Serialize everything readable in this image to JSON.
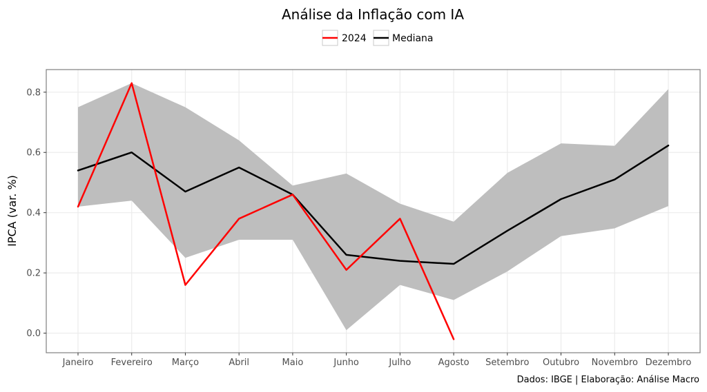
{
  "chart_data": {
    "type": "line",
    "title": "Análise da Inflação com IA",
    "xlabel": "",
    "ylabel": "IPCA (var. %)",
    "caption": "Dados: IBGE | Elaboração: Análise Macro",
    "categories": [
      "Janeiro",
      "Fevereiro",
      "Março",
      "Abril",
      "Maio",
      "Junho",
      "Julho",
      "Agosto",
      "Setembro",
      "Outubro",
      "Novembro",
      "Dezembro"
    ],
    "ylim": [
      -0.065,
      0.875
    ],
    "yticks": [
      0.0,
      0.2,
      0.4,
      0.6,
      0.8
    ],
    "ytick_labels": [
      "0.0",
      "0.2",
      "0.4",
      "0.6",
      "0.8"
    ],
    "grid": true,
    "legend_position": "top",
    "band": {
      "min": [
        0.42,
        0.44,
        0.25,
        0.31,
        0.31,
        0.01,
        0.16,
        0.11,
        0.205,
        0.322,
        0.348,
        0.422
      ],
      "max": [
        0.75,
        0.83,
        0.75,
        0.64,
        0.49,
        0.53,
        0.43,
        0.37,
        0.532,
        0.63,
        0.622,
        0.81
      ],
      "color": "#bebebe"
    },
    "series": [
      {
        "name": "2024",
        "color": "#ff0000",
        "values": [
          0.42,
          0.83,
          0.16,
          0.38,
          0.46,
          0.21,
          0.38,
          -0.02,
          null,
          null,
          null,
          null
        ]
      },
      {
        "name": "Mediana",
        "color": "#000000",
        "values": [
          0.54,
          0.6,
          0.47,
          0.55,
          0.46,
          0.26,
          0.24,
          0.23,
          0.34,
          0.445,
          0.51,
          0.623
        ]
      }
    ]
  }
}
